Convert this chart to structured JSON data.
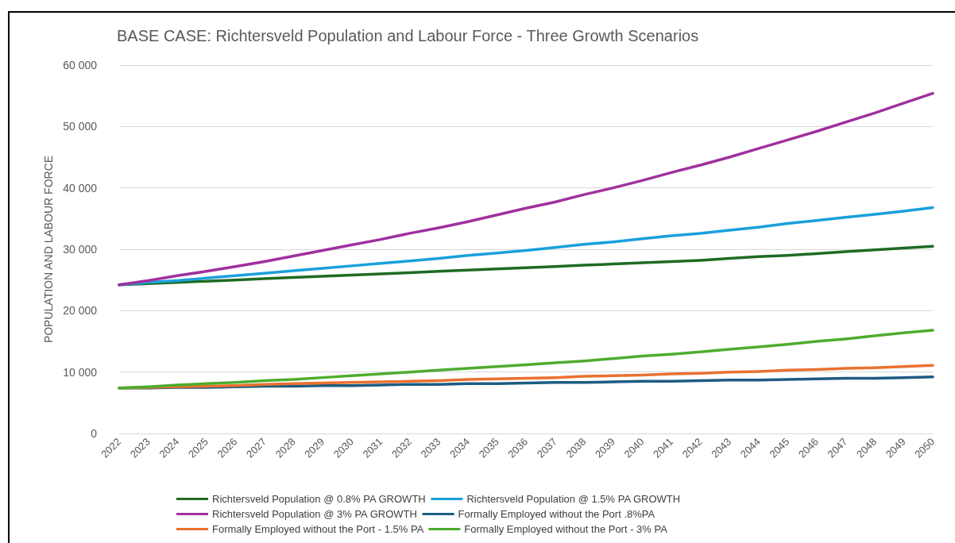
{
  "chart_data": {
    "type": "line",
    "title": "BASE CASE: Richtersveld Population and Labour Force - Three Growth Scenarios",
    "ylabel": "POPULATION AND LABOUR FORCE",
    "categories": [
      "2022",
      "2023",
      "2024",
      "2025",
      "2026",
      "2027",
      "2028",
      "2029",
      "2030",
      "2031",
      "2032",
      "2033",
      "2034",
      "2035",
      "2036",
      "2037",
      "2038",
      "2039",
      "2040",
      "2041",
      "2042",
      "2043",
      "2044",
      "2045",
      "2046",
      "2047",
      "2048",
      "2049",
      "2050"
    ],
    "ylim": [
      0,
      60000
    ],
    "yticks": [
      {
        "value": 0,
        "label": "0"
      },
      {
        "value": 10000,
        "label": "10 000"
      },
      {
        "value": 20000,
        "label": "20 000"
      },
      {
        "value": 30000,
        "label": "30 000"
      },
      {
        "value": 40000,
        "label": "40 000"
      },
      {
        "value": 50000,
        "label": "50 000"
      },
      {
        "value": 60000,
        "label": "60 000"
      }
    ],
    "grid": "y",
    "legend": "bottom",
    "marker": "none",
    "line_style": "solid",
    "series": [
      {
        "name": "Richtersveld Population @ 0.8% PA GROWTH",
        "color": "#1e6b23",
        "values": [
          24200,
          24400,
          24600,
          24800,
          25000,
          25200,
          25400,
          25600,
          25800,
          26000,
          26200,
          26400,
          26600,
          26800,
          27000,
          27200,
          27400,
          27600,
          27800,
          28000,
          28200,
          28500,
          28800,
          29000,
          29300,
          29600,
          29900,
          30200,
          30500
        ]
      },
      {
        "name": "Richtersveld Population @ 1.5% PA GROWTH",
        "color": "#1aa0dc",
        "values": [
          24200,
          24600,
          24900,
          25300,
          25700,
          26100,
          26500,
          26900,
          27300,
          27700,
          28100,
          28500,
          29000,
          29400,
          29800,
          30300,
          30800,
          31200,
          31700,
          32200,
          32600,
          33100,
          33600,
          34200,
          34700,
          35200,
          35700,
          36200,
          36800
        ]
      },
      {
        "name": "Richtersveld Population @ 3% PA GROWTH",
        "color": "#a0309e",
        "values": [
          24200,
          24900,
          25700,
          26400,
          27200,
          28000,
          28900,
          29800,
          30700,
          31600,
          32600,
          33500,
          34500,
          35600,
          36700,
          37700,
          38900,
          40000,
          41200,
          42500,
          43700,
          45000,
          46400,
          47800,
          49200,
          50700,
          52200,
          53800,
          55400
        ]
      },
      {
        "name": "Formally Employed without the Port .8%PA",
        "color": "#1d5c82",
        "values": [
          7400,
          7400,
          7500,
          7500,
          7600,
          7700,
          7700,
          7800,
          7800,
          7900,
          8000,
          8000,
          8100,
          8100,
          8200,
          8300,
          8300,
          8400,
          8500,
          8500,
          8600,
          8700,
          8700,
          8800,
          8900,
          9000,
          9000,
          9100,
          9200
        ]
      },
      {
        "name": "Formally Employed without the Port - 1.5% PA",
        "color": "#ea7130",
        "values": [
          7400,
          7500,
          7600,
          7700,
          7800,
          8000,
          8100,
          8200,
          8300,
          8400,
          8500,
          8600,
          8800,
          8900,
          9000,
          9100,
          9300,
          9400,
          9500,
          9700,
          9800,
          10000,
          10100,
          10300,
          10400,
          10600,
          10700,
          10900,
          11100
        ]
      },
      {
        "name": "Formally Employed without the Port - 3% PA",
        "color": "#4eac2e",
        "values": [
          7400,
          7600,
          7900,
          8100,
          8300,
          8600,
          8800,
          9100,
          9400,
          9700,
          10000,
          10300,
          10600,
          10900,
          11200,
          11500,
          11800,
          12200,
          12600,
          12900,
          13300,
          13700,
          14100,
          14500,
          15000,
          15400,
          15900,
          16400,
          16800
        ]
      }
    ]
  }
}
